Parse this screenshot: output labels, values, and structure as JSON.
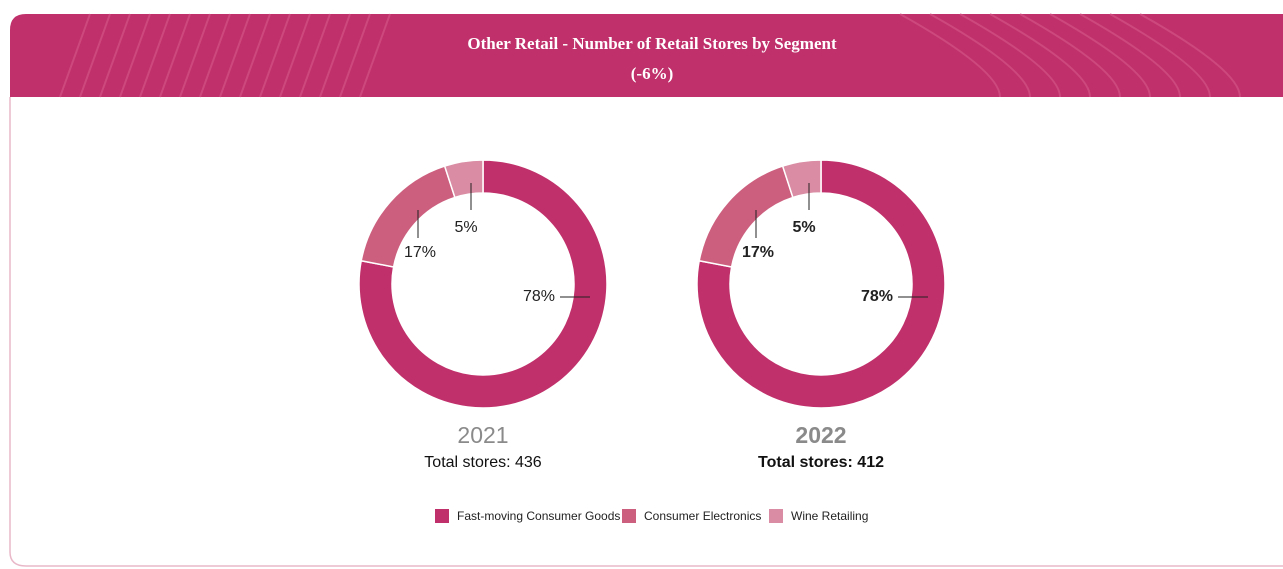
{
  "header": {
    "title": "Other Retail - Number of Retail Stores by Segment",
    "subtitle": "(-6%)"
  },
  "chart_data": [
    {
      "type": "donut",
      "title": "2021",
      "subtitle": "Total stores: 436",
      "categories": [
        "Fast-moving Consumer Goods",
        "Consumer Electronics",
        "Wine Retailing"
      ],
      "values": [
        78,
        17,
        5
      ],
      "value_labels": [
        "78%",
        "17%",
        "5%"
      ],
      "colors": [
        "#c0306a",
        "#cc5f7e",
        "#d98ca3"
      ],
      "bold": false
    },
    {
      "type": "donut",
      "title": "2022",
      "subtitle": "Total stores: 412",
      "categories": [
        "Fast-moving Consumer Goods",
        "Consumer Electronics",
        "Wine Retailing"
      ],
      "values": [
        78,
        17,
        5
      ],
      "value_labels": [
        "78%",
        "17%",
        "5%"
      ],
      "colors": [
        "#c0306a",
        "#cc5f7e",
        "#d98ca3"
      ],
      "bold": true
    }
  ]
}
